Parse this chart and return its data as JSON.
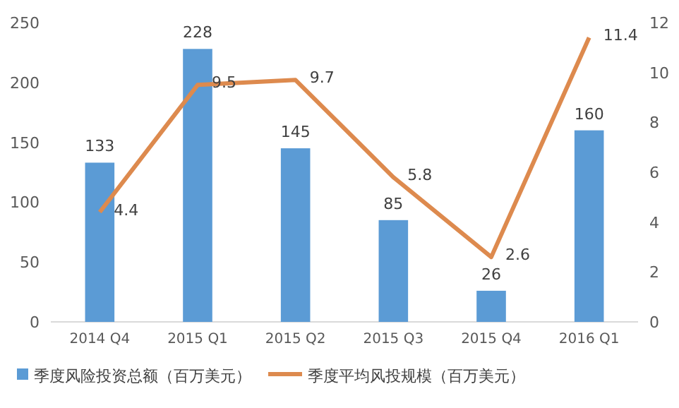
{
  "chart_data": {
    "type": "bar",
    "categories": [
      "2014 Q4",
      "2015 Q1",
      "2015 Q2",
      "2015 Q3",
      "2015 Q4",
      "2016 Q1"
    ],
    "series": [
      {
        "name": "季度风险投资总额（百万美元）",
        "color": "#5b9bd5",
        "values": [
          133,
          228,
          145,
          85,
          26,
          160
        ]
      },
      {
        "name": "季度平均风投规模（百万美元）",
        "type": "line",
        "axis": "y2",
        "color": "#dd8a4e",
        "values": [
          4.4,
          9.5,
          9.7,
          5.8,
          2.6,
          11.4
        ]
      }
    ],
    "ylim": [
      0,
      250
    ],
    "yticks": [
      0,
      50,
      100,
      150,
      200,
      250
    ],
    "y2lim": [
      0,
      12
    ],
    "y2ticks": [
      0,
      2,
      4,
      6,
      8,
      10,
      12
    ],
    "data_labels": true,
    "legend": "bottom",
    "grid": false
  }
}
